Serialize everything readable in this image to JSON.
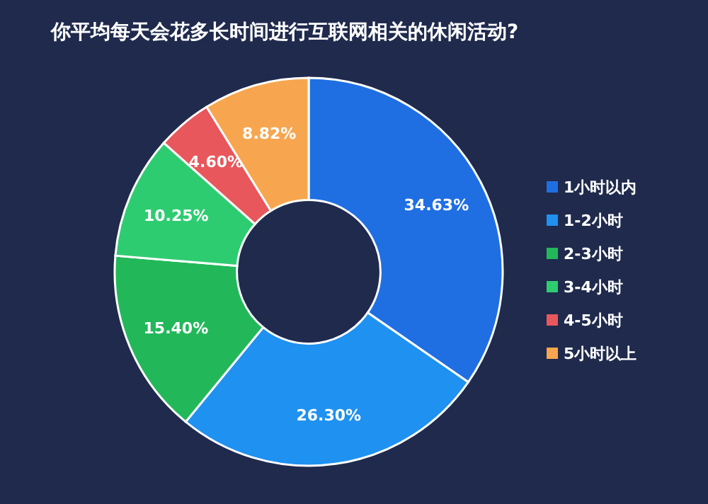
{
  "chart_data": {
    "type": "donut",
    "title": "你平均每天会花多长时间进行互联网相关的休闲活动?",
    "categories": [
      "1小时以内",
      "1-2小时",
      "2-3小时",
      "3-4小时",
      "4-5小时",
      "5小时以上"
    ],
    "values": [
      34.63,
      26.3,
      15.4,
      10.25,
      4.6,
      8.82
    ],
    "value_labels": [
      "34.63%",
      "26.30%",
      "15.40%",
      "10.25%",
      "4.60%",
      "8.82%"
    ],
    "colors": [
      "#1f6fe3",
      "#1f91f0",
      "#22b85a",
      "#2ecc71",
      "#e8575b",
      "#f7a64f"
    ],
    "legend": "right"
  }
}
